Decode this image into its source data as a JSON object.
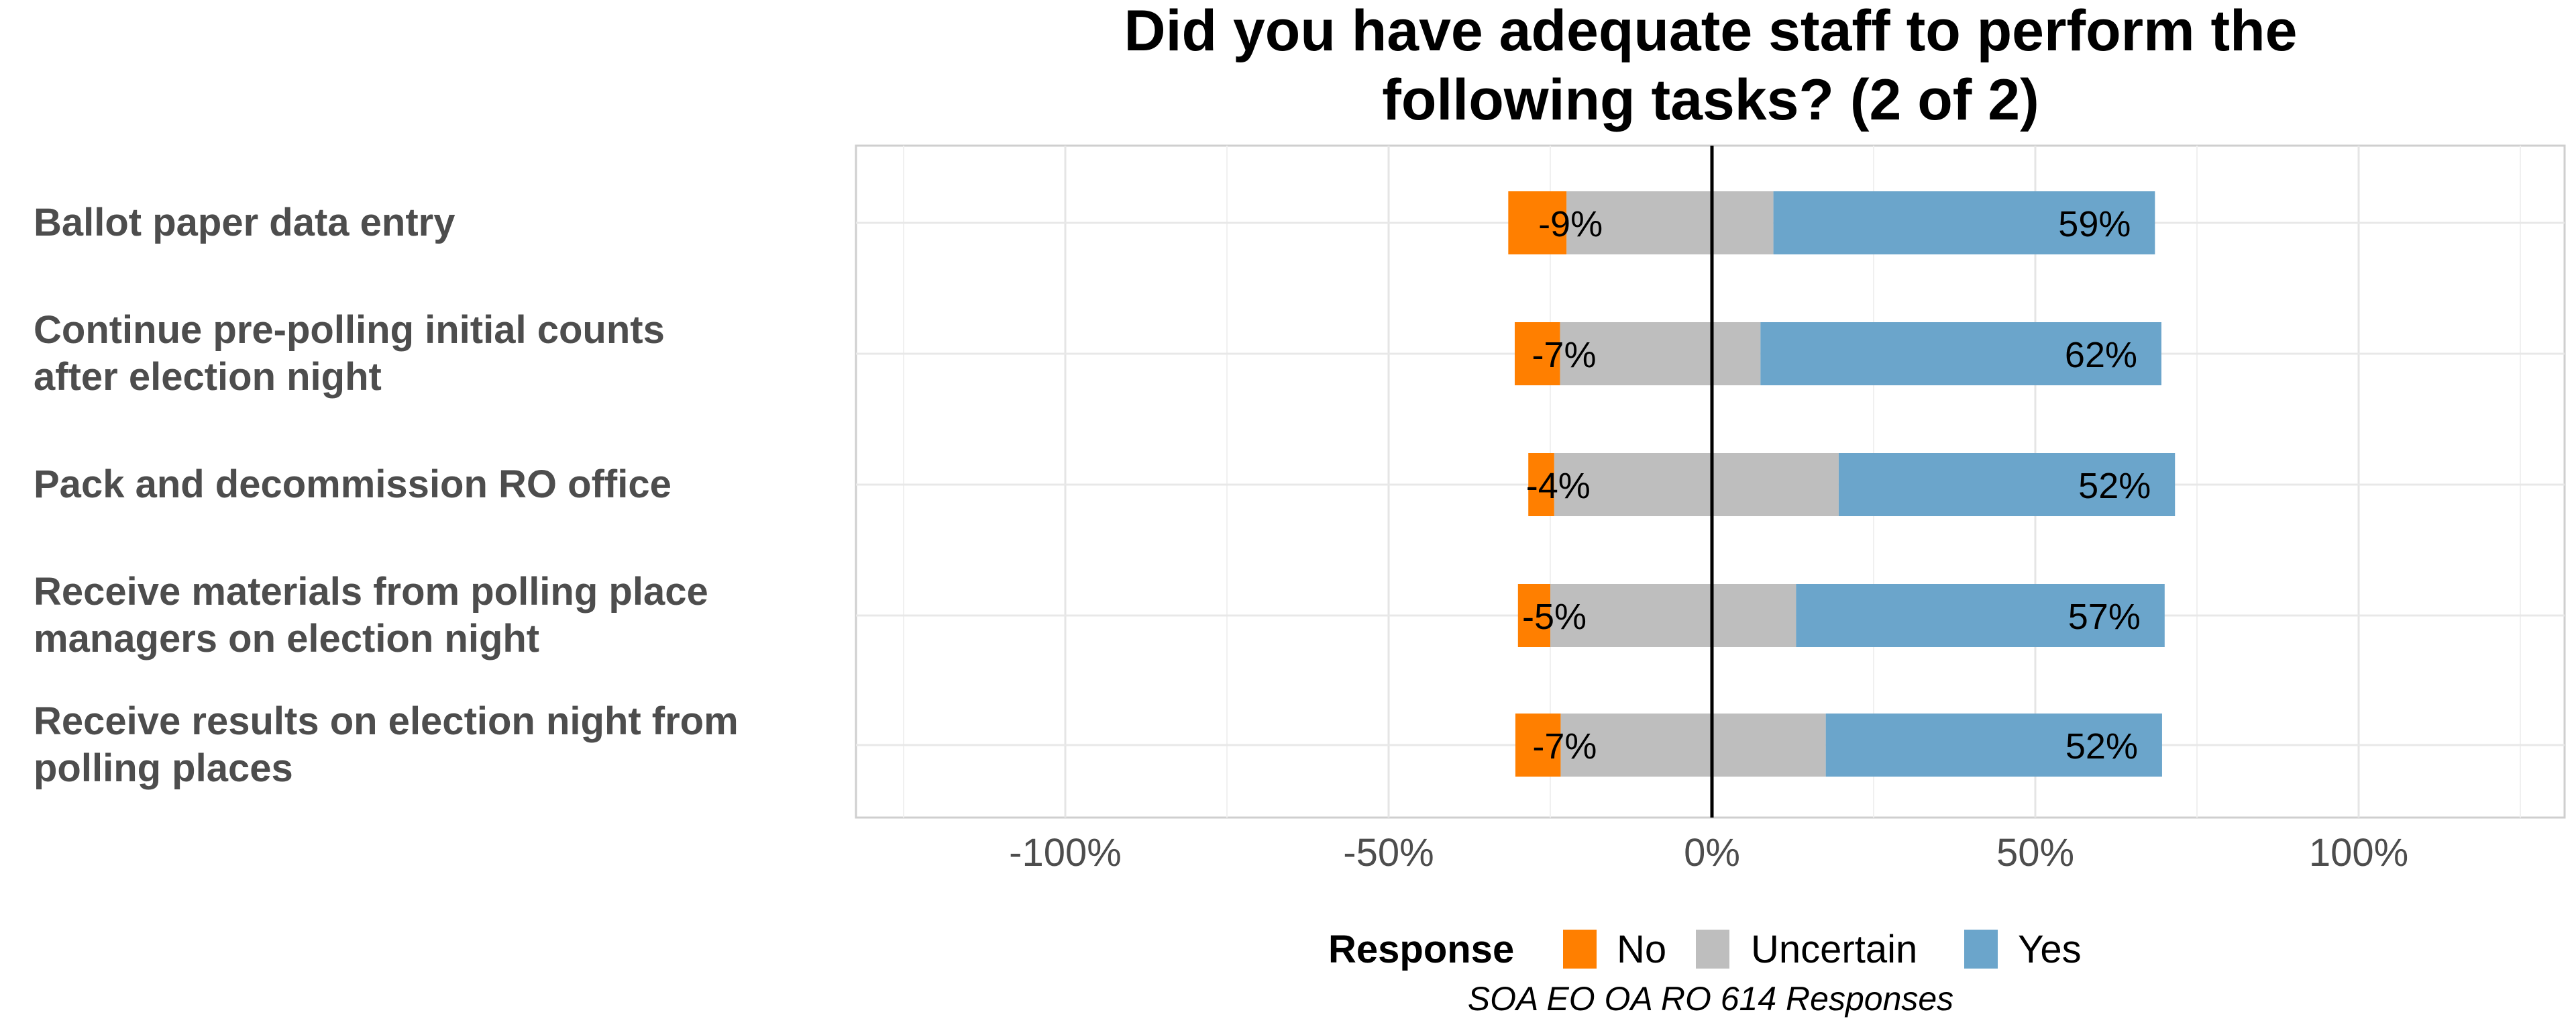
{
  "chart_data": {
    "type": "bar",
    "orientation": "horizontal",
    "stacked": "diverging",
    "title": "Did you have adequate staff to perform the following tasks? (2 of 2)",
    "title_lines": [
      "Did you have adequate staff to perform the",
      "following tasks? (2 of 2)"
    ],
    "caption": "SOA EO OA RO 614 Responses",
    "categories": [
      "Ballot paper data entry",
      "Continue pre-polling initial counts after election night",
      "Pack and decommission RO office",
      "Receive materials from polling place managers on election night",
      "Receive results on election night from polling places"
    ],
    "category_lines": [
      [
        "Ballot paper data entry"
      ],
      [
        "Continue pre-polling initial counts",
        "after election night"
      ],
      [
        "Pack and decommission RO office"
      ],
      [
        "Receive materials from polling place",
        "managers on election night"
      ],
      [
        "Receive results on election night from",
        "polling places"
      ]
    ],
    "series": [
      {
        "name": "No",
        "color": "#FF7F00",
        "values": [
          9,
          7,
          4,
          5,
          7
        ]
      },
      {
        "name": "Uncertain",
        "color": "#BEBEBE",
        "values": [
          32,
          31,
          44,
          38,
          41
        ]
      },
      {
        "name": "Yes",
        "color": "#6BA5CB",
        "values": [
          59,
          62,
          52,
          57,
          52
        ]
      }
    ],
    "data_labels": {
      "No": [
        "-9%",
        "-7%",
        "-4%",
        "-5%",
        "-7%"
      ],
      "Yes": [
        "59%",
        "62%",
        "52%",
        "57%",
        "52%"
      ]
    },
    "x_ticks": [
      -100,
      -50,
      0,
      50,
      100
    ],
    "x_tick_labels": [
      "-100%",
      "-50%",
      "0%",
      "50%",
      "100%"
    ],
    "xlim": [
      -132,
      132
    ],
    "grid": true,
    "legend": {
      "title": "Response",
      "entries": [
        "No",
        "Uncertain",
        "Yes"
      ],
      "position": "bottom"
    }
  }
}
